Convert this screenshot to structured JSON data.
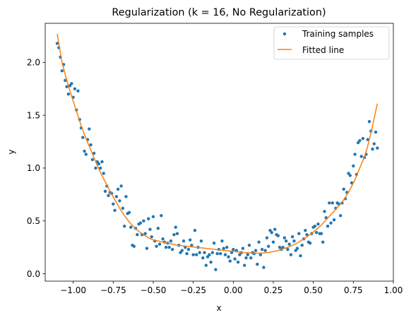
{
  "chart_data": {
    "type": "scatter",
    "title": "Regularization (k = 16, No Regularization)",
    "xlabel": "x",
    "ylabel": "y",
    "xlim": [
      -1.175,
      1.0
    ],
    "ylim": [
      -0.07,
      2.37
    ],
    "xticks": [
      -1.0,
      -0.75,
      -0.5,
      -0.25,
      0.0,
      0.25,
      0.5,
      0.75,
      1.0
    ],
    "xtick_labels": [
      "−1.00",
      "−0.75",
      "−0.50",
      "−0.25",
      "0.00",
      "0.25",
      "0.50",
      "0.75",
      "1.00"
    ],
    "yticks": [
      0.0,
      0.5,
      1.0,
      1.5,
      2.0
    ],
    "ytick_labels": [
      "0.0",
      "0.5",
      "1.0",
      "1.5",
      "2.0"
    ],
    "grid": false,
    "legend": {
      "position": "top-right",
      "entries": [
        "Training samples",
        "Fitted line"
      ]
    },
    "colors": {
      "samples": "#1f77b4",
      "fitted_line": "#ff7f0e"
    },
    "series": [
      {
        "name": "Training samples",
        "kind": "scatter",
        "points": [
          [
            -1.1,
            2.18
          ],
          [
            -1.09,
            2.14
          ],
          [
            -1.08,
            2.05
          ],
          [
            -1.07,
            1.92
          ],
          [
            -1.06,
            1.98
          ],
          [
            -1.05,
            1.83
          ],
          [
            -1.04,
            1.77
          ],
          [
            -1.03,
            1.7
          ],
          [
            -1.02,
            1.78
          ],
          [
            -1.01,
            1.8
          ],
          [
            -1.0,
            1.67
          ],
          [
            -0.99,
            1.75
          ],
          [
            -0.98,
            1.55
          ],
          [
            -0.97,
            1.73
          ],
          [
            -0.96,
            1.46
          ],
          [
            -0.95,
            1.38
          ],
          [
            -0.94,
            1.29
          ],
          [
            -0.93,
            1.16
          ],
          [
            -0.92,
            1.13
          ],
          [
            -0.91,
            1.27
          ],
          [
            -0.9,
            1.37
          ],
          [
            -0.89,
            1.22
          ],
          [
            -0.88,
            1.08
          ],
          [
            -0.87,
            1.14
          ],
          [
            -0.86,
            1.0
          ],
          [
            -0.85,
            1.06
          ],
          [
            -0.84,
            1.04
          ],
          [
            -0.83,
            1.0
          ],
          [
            -0.82,
            1.06
          ],
          [
            -0.81,
            0.95
          ],
          [
            -0.8,
            0.78
          ],
          [
            -0.79,
            0.83
          ],
          [
            -0.78,
            0.74
          ],
          [
            -0.77,
            0.77
          ],
          [
            -0.76,
            0.76
          ],
          [
            -0.75,
            0.66
          ],
          [
            -0.74,
            0.6
          ],
          [
            -0.73,
            0.73
          ],
          [
            -0.72,
            0.8
          ],
          [
            -0.71,
            0.69
          ],
          [
            -0.7,
            0.83
          ],
          [
            -0.69,
            0.62
          ],
          [
            -0.68,
            0.45
          ],
          [
            -0.67,
            0.73
          ],
          [
            -0.66,
            0.57
          ],
          [
            -0.65,
            0.58
          ],
          [
            -0.64,
            0.44
          ],
          [
            -0.63,
            0.27
          ],
          [
            -0.62,
            0.26
          ],
          [
            -0.61,
            0.43
          ],
          [
            -0.6,
            0.37
          ],
          [
            -0.59,
            0.47
          ],
          [
            -0.58,
            0.48
          ],
          [
            -0.57,
            0.37
          ],
          [
            -0.56,
            0.5
          ],
          [
            -0.55,
            0.38
          ],
          [
            -0.54,
            0.24
          ],
          [
            -0.53,
            0.52
          ],
          [
            -0.52,
            0.42
          ],
          [
            -0.51,
            0.35
          ],
          [
            -0.5,
            0.54
          ],
          [
            -0.49,
            0.31
          ],
          [
            -0.48,
            0.26
          ],
          [
            -0.47,
            0.43
          ],
          [
            -0.46,
            0.28
          ],
          [
            -0.45,
            0.55
          ],
          [
            -0.44,
            0.33
          ],
          [
            -0.43,
            0.3
          ],
          [
            -0.42,
            0.25
          ],
          [
            -0.41,
            0.29
          ],
          [
            -0.4,
            0.25
          ],
          [
            -0.39,
            0.31
          ],
          [
            -0.38,
            0.23
          ],
          [
            -0.37,
            0.37
          ],
          [
            -0.36,
            0.44
          ],
          [
            -0.35,
            0.38
          ],
          [
            -0.34,
            0.27
          ],
          [
            -0.33,
            0.2
          ],
          [
            -0.32,
            0.22
          ],
          [
            -0.31,
            0.31
          ],
          [
            -0.3,
            0.25
          ],
          [
            -0.29,
            0.19
          ],
          [
            -0.28,
            0.23
          ],
          [
            -0.27,
            0.32
          ],
          [
            -0.26,
            0.27
          ],
          [
            -0.25,
            0.18
          ],
          [
            -0.24,
            0.41
          ],
          [
            -0.23,
            0.18
          ],
          [
            -0.22,
            0.25
          ],
          [
            -0.21,
            0.2
          ],
          [
            -0.2,
            0.31
          ],
          [
            -0.19,
            0.15
          ],
          [
            -0.18,
            0.2
          ],
          [
            -0.17,
            0.08
          ],
          [
            -0.16,
            0.16
          ],
          [
            -0.15,
            0.18
          ],
          [
            -0.14,
            0.11
          ],
          [
            -0.13,
            0.2
          ],
          [
            -0.12,
            0.29
          ],
          [
            -0.11,
            0.04
          ],
          [
            -0.1,
            0.19
          ],
          [
            -0.09,
            0.23
          ],
          [
            -0.08,
            0.19
          ],
          [
            -0.07,
            0.31
          ],
          [
            -0.06,
            0.24
          ],
          [
            -0.05,
            0.18
          ],
          [
            -0.04,
            0.25
          ],
          [
            -0.03,
            0.16
          ],
          [
            -0.02,
            0.12
          ],
          [
            -0.01,
            0.2
          ],
          [
            0.0,
            0.23
          ],
          [
            0.01,
            0.14
          ],
          [
            0.02,
            0.22
          ],
          [
            0.03,
            0.11
          ],
          [
            0.04,
            0.18
          ],
          [
            0.05,
            0.2
          ],
          [
            0.06,
            0.24
          ],
          [
            0.07,
            0.08
          ],
          [
            0.08,
            0.15
          ],
          [
            0.09,
            0.18
          ],
          [
            0.1,
            0.27
          ],
          [
            0.11,
            0.15
          ],
          [
            0.12,
            0.2
          ],
          [
            0.13,
            0.19
          ],
          [
            0.14,
            0.22
          ],
          [
            0.15,
            0.09
          ],
          [
            0.16,
            0.3
          ],
          [
            0.17,
            0.18
          ],
          [
            0.18,
            0.23
          ],
          [
            0.19,
            0.06
          ],
          [
            0.2,
            0.22
          ],
          [
            0.21,
            0.34
          ],
          [
            0.22,
            0.26
          ],
          [
            0.23,
            0.41
          ],
          [
            0.24,
            0.39
          ],
          [
            0.25,
            0.3
          ],
          [
            0.26,
            0.42
          ],
          [
            0.27,
            0.37
          ],
          [
            0.28,
            0.36
          ],
          [
            0.29,
            0.25
          ],
          [
            0.3,
            0.23
          ],
          [
            0.31,
            0.25
          ],
          [
            0.32,
            0.34
          ],
          [
            0.33,
            0.31
          ],
          [
            0.34,
            0.23
          ],
          [
            0.35,
            0.28
          ],
          [
            0.36,
            0.18
          ],
          [
            0.37,
            0.35
          ],
          [
            0.38,
            0.31
          ],
          [
            0.39,
            0.22
          ],
          [
            0.4,
            0.24
          ],
          [
            0.41,
            0.38
          ],
          [
            0.42,
            0.17
          ],
          [
            0.43,
            0.27
          ],
          [
            0.44,
            0.33
          ],
          [
            0.45,
            0.41
          ],
          [
            0.46,
            0.37
          ],
          [
            0.47,
            0.3
          ],
          [
            0.48,
            0.29
          ],
          [
            0.49,
            0.38
          ],
          [
            0.5,
            0.44
          ],
          [
            0.51,
            0.45
          ],
          [
            0.52,
            0.39
          ],
          [
            0.53,
            0.47
          ],
          [
            0.54,
            0.38
          ],
          [
            0.55,
            0.38
          ],
          [
            0.56,
            0.3
          ],
          [
            0.57,
            0.59
          ],
          [
            0.58,
            0.53
          ],
          [
            0.59,
            0.45
          ],
          [
            0.6,
            0.67
          ],
          [
            0.61,
            0.48
          ],
          [
            0.62,
            0.67
          ],
          [
            0.63,
            0.51
          ],
          [
            0.64,
            0.62
          ],
          [
            0.65,
            0.67
          ],
          [
            0.66,
            0.66
          ],
          [
            0.67,
            0.55
          ],
          [
            0.68,
            0.67
          ],
          [
            0.69,
            0.8
          ],
          [
            0.7,
            0.71
          ],
          [
            0.71,
            0.77
          ],
          [
            0.72,
            0.95
          ],
          [
            0.73,
            0.93
          ],
          [
            0.74,
            0.86
          ],
          [
            0.75,
            1.02
          ],
          [
            0.76,
            1.13
          ],
          [
            0.77,
            0.94
          ],
          [
            0.78,
            1.24
          ],
          [
            0.79,
            1.26
          ],
          [
            0.8,
            1.11
          ],
          [
            0.81,
            1.28
          ],
          [
            0.82,
            1.1
          ],
          [
            0.83,
            1.13
          ],
          [
            0.84,
            1.27
          ],
          [
            0.85,
            1.44
          ],
          [
            0.86,
            1.35
          ],
          [
            0.87,
            1.18
          ],
          [
            0.88,
            1.23
          ],
          [
            0.89,
            1.34
          ],
          [
            0.9,
            1.19
          ]
        ]
      },
      {
        "name": "Fitted line",
        "kind": "line",
        "points": [
          [
            -1.1,
            2.27
          ],
          [
            -1.07,
            2.0
          ],
          [
            -1.04,
            1.83
          ],
          [
            -1.01,
            1.68
          ],
          [
            -0.98,
            1.54
          ],
          [
            -0.95,
            1.4
          ],
          [
            -0.92,
            1.28
          ],
          [
            -0.89,
            1.17
          ],
          [
            -0.86,
            1.06
          ],
          [
            -0.83,
            0.96
          ],
          [
            -0.8,
            0.87
          ],
          [
            -0.77,
            0.78
          ],
          [
            -0.74,
            0.7
          ],
          [
            -0.71,
            0.62
          ],
          [
            -0.68,
            0.55
          ],
          [
            -0.65,
            0.49
          ],
          [
            -0.62,
            0.44
          ],
          [
            -0.59,
            0.4
          ],
          [
            -0.56,
            0.37
          ],
          [
            -0.53,
            0.34
          ],
          [
            -0.5,
            0.32
          ],
          [
            -0.47,
            0.31
          ],
          [
            -0.44,
            0.3
          ],
          [
            -0.41,
            0.29
          ],
          [
            -0.38,
            0.28
          ],
          [
            -0.35,
            0.27
          ],
          [
            -0.32,
            0.265
          ],
          [
            -0.29,
            0.26
          ],
          [
            -0.26,
            0.255
          ],
          [
            -0.23,
            0.25
          ],
          [
            -0.2,
            0.245
          ],
          [
            -0.17,
            0.24
          ],
          [
            -0.14,
            0.235
          ],
          [
            -0.11,
            0.23
          ],
          [
            -0.08,
            0.225
          ],
          [
            -0.05,
            0.22
          ],
          [
            -0.02,
            0.215
          ],
          [
            0.01,
            0.21
          ],
          [
            0.04,
            0.205
          ],
          [
            0.07,
            0.2
          ],
          [
            0.1,
            0.198
          ],
          [
            0.13,
            0.196
          ],
          [
            0.16,
            0.195
          ],
          [
            0.19,
            0.197
          ],
          [
            0.22,
            0.2
          ],
          [
            0.25,
            0.21
          ],
          [
            0.28,
            0.22
          ],
          [
            0.31,
            0.235
          ],
          [
            0.34,
            0.25
          ],
          [
            0.37,
            0.27
          ],
          [
            0.4,
            0.29
          ],
          [
            0.43,
            0.32
          ],
          [
            0.46,
            0.35
          ],
          [
            0.49,
            0.38
          ],
          [
            0.52,
            0.42
          ],
          [
            0.55,
            0.46
          ],
          [
            0.58,
            0.51
          ],
          [
            0.61,
            0.56
          ],
          [
            0.64,
            0.61
          ],
          [
            0.67,
            0.66
          ],
          [
            0.7,
            0.72
          ],
          [
            0.73,
            0.8
          ],
          [
            0.76,
            0.89
          ],
          [
            0.79,
            1.0
          ],
          [
            0.82,
            1.11
          ],
          [
            0.84,
            1.21
          ],
          [
            0.86,
            1.33
          ],
          [
            0.88,
            1.47
          ],
          [
            0.9,
            1.61
          ]
        ]
      }
    ]
  }
}
